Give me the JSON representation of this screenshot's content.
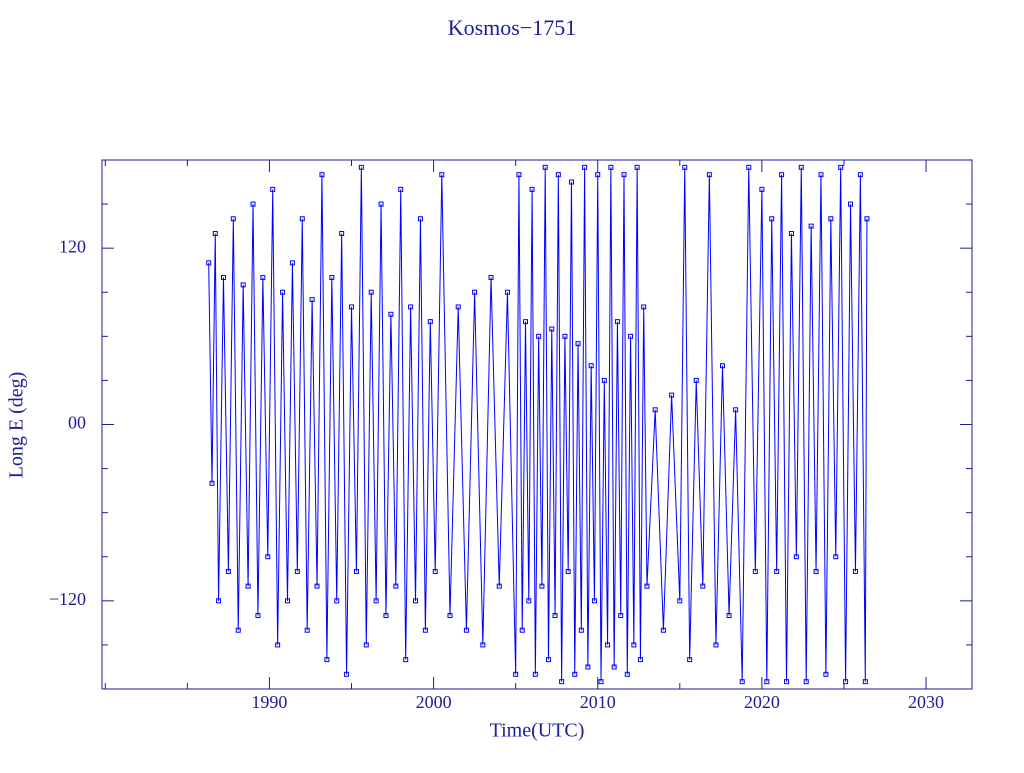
{
  "chart_data": {
    "type": "line",
    "title": "Kosmos−1751",
    "x_label": "Time(UTC)",
    "y_label": "Long E (deg)",
    "color": "#0000ff",
    "axis_color": "#1c1c9c",
    "xlim": [
      1979.8,
      2032.8
    ],
    "ylim": [
      -180,
      180
    ],
    "xticks": [
      1990,
      2000,
      2010,
      2020,
      2030
    ],
    "xminorticks": [
      1980,
      1985,
      1995,
      2005,
      2015,
      2025
    ],
    "yticks": [
      {
        "value": -120,
        "label": "−120"
      },
      {
        "value": 0,
        "label": "00"
      },
      120
    ],
    "yminorticks": [
      -150,
      -90,
      -60,
      -30,
      30,
      60,
      90,
      150
    ],
    "x": [
      1986.3,
      1986.5,
      1986.7,
      1986.9,
      1987.2,
      1987.5,
      1987.8,
      1988.1,
      1988.4,
      1988.7,
      1989.0,
      1989.3,
      1989.6,
      1989.9,
      1990.2,
      1990.5,
      1990.8,
      1991.1,
      1991.4,
      1991.7,
      1992.0,
      1992.3,
      1992.6,
      1992.9,
      1993.2,
      1993.5,
      1993.8,
      1994.1,
      1994.4,
      1994.7,
      1995.0,
      1995.3,
      1995.6,
      1995.9,
      1996.2,
      1996.5,
      1996.8,
      1997.1,
      1997.4,
      1997.7,
      1998.0,
      1998.3,
      1998.6,
      1998.9,
      1999.2,
      1999.5,
      1999.8,
      2000.1,
      2000.5,
      2001.0,
      2001.5,
      2002.0,
      2002.5,
      2003.0,
      2003.5,
      2004.0,
      2004.5,
      2005.0,
      2005.2,
      2005.4,
      2005.6,
      2005.8,
      2006.0,
      2006.2,
      2006.4,
      2006.6,
      2006.8,
      2007.0,
      2007.2,
      2007.4,
      2007.6,
      2007.8,
      2008.0,
      2008.2,
      2008.4,
      2008.6,
      2008.8,
      2009.0,
      2009.2,
      2009.4,
      2009.6,
      2009.8,
      2010.0,
      2010.2,
      2010.4,
      2010.6,
      2010.8,
      2011.0,
      2011.2,
      2011.4,
      2011.6,
      2011.8,
      2012.0,
      2012.2,
      2012.4,
      2012.6,
      2012.8,
      2013.0,
      2013.5,
      2014.0,
      2014.5,
      2015.0,
      2015.3,
      2015.6,
      2016.0,
      2016.4,
      2016.8,
      2017.2,
      2017.6,
      2018.0,
      2018.4,
      2018.8,
      2019.2,
      2019.6,
      2020.0,
      2020.3,
      2020.6,
      2020.9,
      2021.2,
      2021.5,
      2021.8,
      2022.1,
      2022.4,
      2022.7,
      2023.0,
      2023.3,
      2023.6,
      2023.9,
      2024.2,
      2024.5,
      2024.8,
      2025.1,
      2025.4,
      2025.7,
      2026.0,
      2026.3,
      2026.4
    ],
    "values": [
      110,
      -40,
      130,
      -120,
      100,
      -100,
      140,
      -140,
      95,
      -110,
      150,
      -130,
      100,
      -90,
      160,
      -150,
      90,
      -120,
      110,
      -100,
      140,
      -140,
      85,
      -110,
      170,
      -160,
      100,
      -120,
      130,
      -170,
      80,
      -100,
      175,
      -150,
      90,
      -120,
      150,
      -130,
      75,
      -110,
      160,
      -160,
      80,
      -120,
      140,
      -140,
      70,
      -100,
      170,
      -130,
      80,
      -140,
      90,
      -150,
      100,
      -110,
      90,
      -170,
      170,
      -140,
      70,
      -120,
      160,
      -170,
      60,
      -110,
      175,
      -160,
      65,
      -130,
      170,
      -175,
      60,
      -100,
      165,
      -170,
      55,
      -140,
      175,
      -165,
      40,
      -120,
      170,
      -175,
      30,
      -150,
      175,
      -165,
      70,
      -130,
      170,
      -170,
      60,
      -150,
      175,
      -160,
      80,
      -110,
      10,
      -140,
      20,
      -120,
      175,
      -160,
      30,
      -110,
      170,
      -150,
      40,
      -130,
      10,
      -175,
      175,
      -100,
      160,
      -175,
      140,
      -100,
      170,
      -175,
      130,
      -90,
      175,
      -175,
      135,
      -100,
      170,
      -170,
      140,
      -90,
      175,
      -175,
      150,
      -100,
      170,
      -175,
      140
    ]
  }
}
